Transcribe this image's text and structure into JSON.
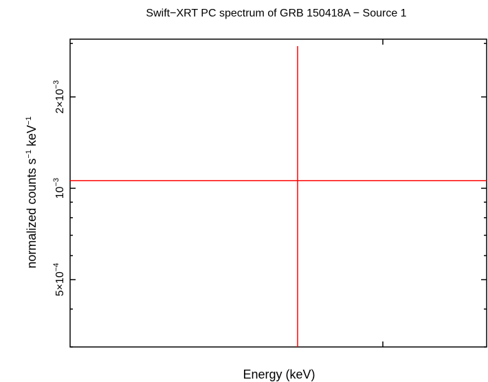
{
  "chart_data": {
    "type": "scatter",
    "title": "Swift−XRT PC spectrum of GRB 150418A − Source 1",
    "xlabel": "Energy (keV)",
    "ylabel": {
      "main": "normalized counts s",
      "sup1": "−1",
      "mid": " keV",
      "sup2": "−1"
    },
    "y_scale": "log",
    "ylim": [
      0.0003,
      0.0031
    ],
    "y_ticks": [
      {
        "value": 0.0005,
        "mantissa": "5×10",
        "exponent": "−4"
      },
      {
        "value": 0.001,
        "mantissa": "10",
        "exponent": "−3"
      },
      {
        "value": 0.002,
        "mantissa": "2×10",
        "exponent": "−3"
      }
    ],
    "x_tick_labels": [],
    "grid": false,
    "series": [
      {
        "color": "#ff0000",
        "points": [
          {
            "y": 0.00106,
            "y_err_low": 0.0003,
            "y_err_high": 0.00294
          }
        ]
      }
    ]
  }
}
